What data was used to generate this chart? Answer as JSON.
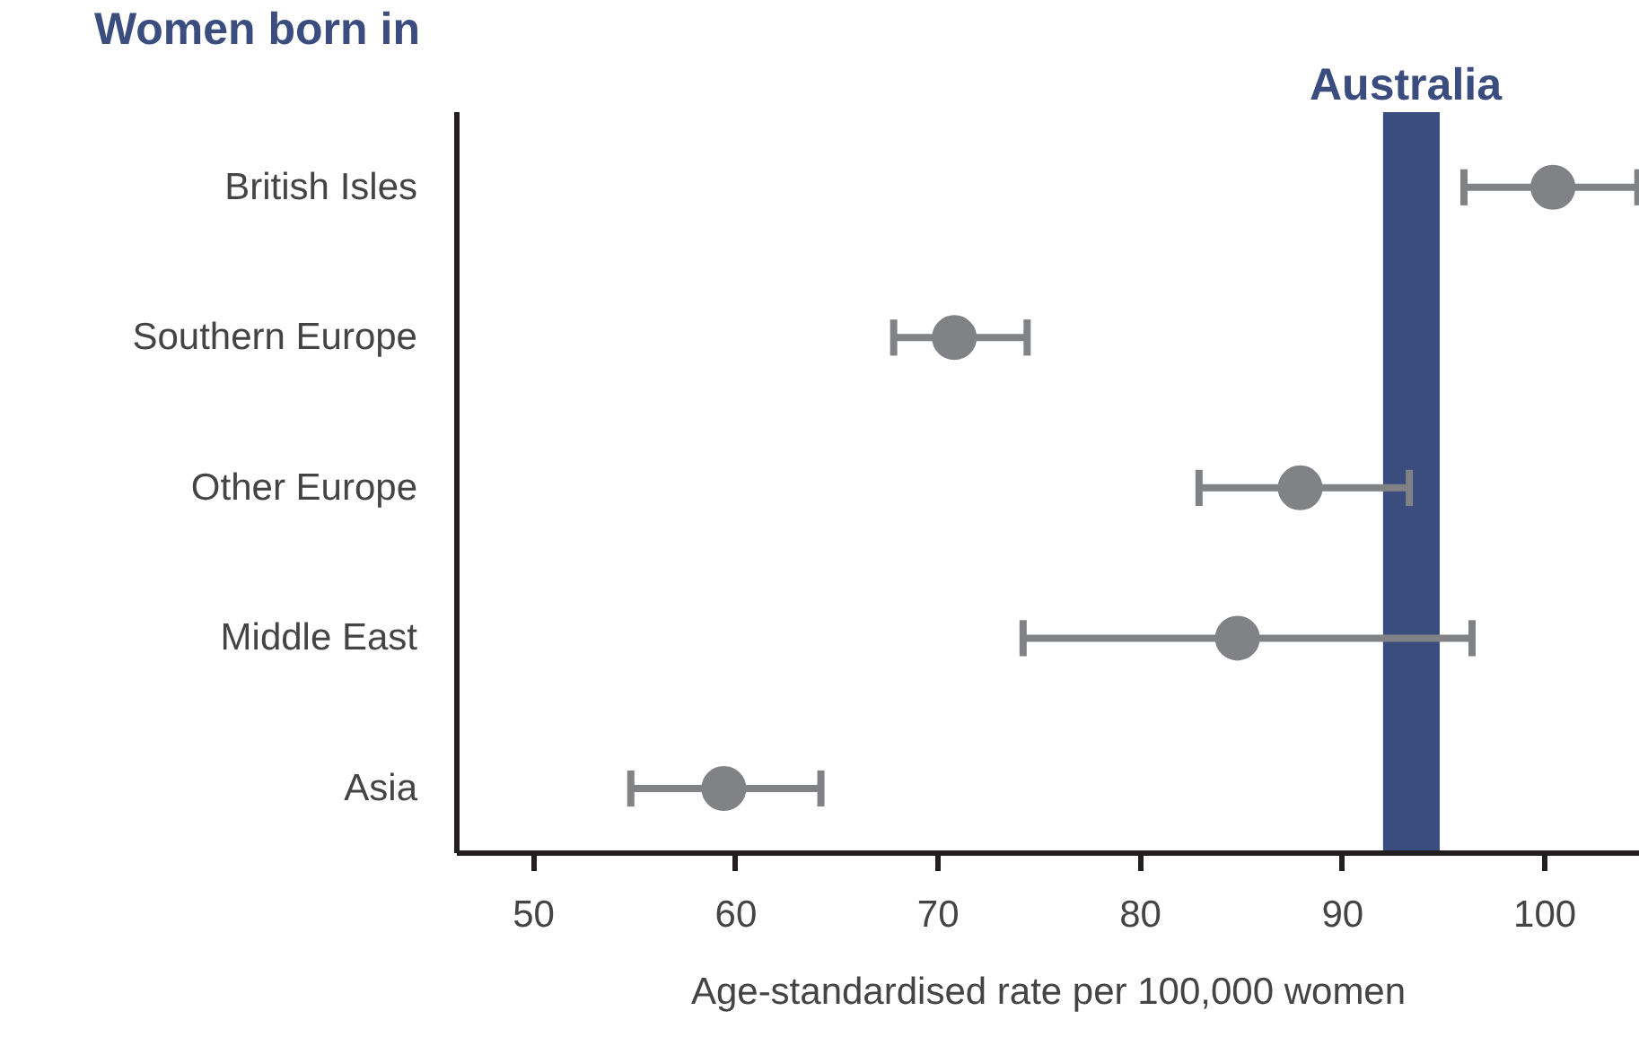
{
  "chart_data": {
    "type": "scatter",
    "title": "Women born in",
    "xlabel": "Age-standardised rate per 100,000 women",
    "orientation": "horizontal",
    "categories": [
      "British Isles",
      "Southern Europe",
      "Other Europe",
      "Middle East",
      "Asia"
    ],
    "values": [
      100.4,
      70.8,
      87.9,
      84.8,
      59.4
    ],
    "errors": [
      [
        96.0,
        104.6
      ],
      [
        67.8,
        74.4
      ],
      [
        82.9,
        93.3
      ],
      [
        74.2,
        96.4
      ],
      [
        54.8,
        64.2
      ]
    ],
    "color": "#808285",
    "marker": "circle",
    "xlim": [
      46.2,
      104.7
    ],
    "xticks": [
      50,
      60,
      70,
      80,
      90,
      100
    ],
    "bands": [
      {
        "axis": "x",
        "from": 92.0,
        "to": 94.8,
        "label": "Australia",
        "color": "#3a4d7e"
      }
    ],
    "grid": false
  }
}
